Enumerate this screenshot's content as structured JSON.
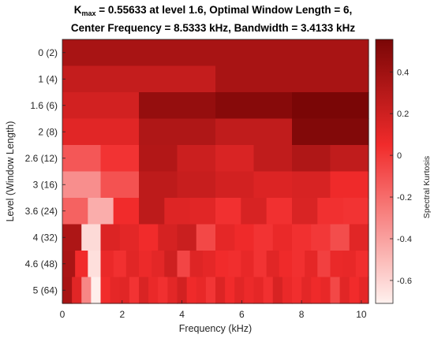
{
  "chart_data": {
    "type": "heatmap",
    "title_line1": {
      "k": "K",
      "sub": "max",
      "rest": " = 0.55633 at level 1.6, Optimal Window Length = 6,"
    },
    "title_line2": "Center Frequency = 8.5333 kHz, Bandwidth = 3.4133 kHz",
    "xlabel": "Frequency (kHz)",
    "ylabel": "Level (Window Length)",
    "colorbar_label": "Spectral Kurtosis",
    "xlim": [
      0,
      10.24
    ],
    "xticks": [
      "0",
      "2",
      "4",
      "6",
      "8",
      "10"
    ],
    "clim": [
      -0.71,
      0.556
    ],
    "cbar_ticks": [
      "0.4",
      "0.2",
      "0",
      "-0.2",
      "-0.4",
      "-0.6"
    ],
    "colors": {
      "low": "#fff1ee",
      "mid": "#f12b2b",
      "high": "#7a0606"
    },
    "rows": [
      {
        "label": "0 (2)",
        "values": [
          0.36
        ]
      },
      {
        "label": "1 (4)",
        "values": [
          0.24,
          0.36
        ]
      },
      {
        "label": "1.6 (6)",
        "values": [
          0.18,
          0.44,
          0.5,
          0.556
        ]
      },
      {
        "label": "2 (8)",
        "values": [
          0.12,
          0.33,
          0.26,
          0.52
        ]
      },
      {
        "label": "2.6 (12)",
        "values": [
          -0.12,
          0.02,
          0.32,
          0.21,
          0.15,
          0.26,
          0.33,
          0.26
        ]
      },
      {
        "label": "3 (16)",
        "values": [
          -0.33,
          -0.1,
          0.27,
          0.23,
          0.18,
          0.14,
          0.16,
          0.06
        ]
      },
      {
        "label": "3.6 (24)",
        "values": [
          -0.16,
          -0.45,
          0.05,
          0.27,
          0.13,
          0.12,
          0.03,
          0.16,
          0.03,
          0.15,
          0.03,
          0.02
        ]
      },
      {
        "label": "4 (32)",
        "values": [
          0.34,
          -0.62,
          0.14,
          0.11,
          0.05,
          0.17,
          0.22,
          -0.06,
          0.1,
          0.06,
          0.02,
          0.08,
          0.03,
          0.0,
          -0.08,
          0.12
        ]
      },
      {
        "label": "4.6 (48)",
        "values": [
          0.35,
          0.05,
          -0.64,
          0.08,
          0.03,
          0.12,
          0.07,
          0.11,
          0.2,
          -0.05,
          0.13,
          0.1,
          0.05,
          0.04,
          0.09,
          0.02,
          0.12,
          0.06,
          0.03,
          0.1,
          -0.03,
          0.08,
          0.09,
          0.04
        ]
      },
      {
        "label": "5 (64)",
        "values": [
          0.36,
          0.12,
          -0.3,
          -0.7,
          0.05,
          0.1,
          0.12,
          0.02,
          0.15,
          0.08,
          0.03,
          0.11,
          0.18,
          0.06,
          0.09,
          0.01,
          0.14,
          0.05,
          0.12,
          0.07,
          0.1,
          0.03,
          0.16,
          0.08,
          0.04,
          0.11,
          0.06,
          0.09,
          -0.06,
          0.12,
          0.05,
          0.1
        ]
      }
    ]
  }
}
